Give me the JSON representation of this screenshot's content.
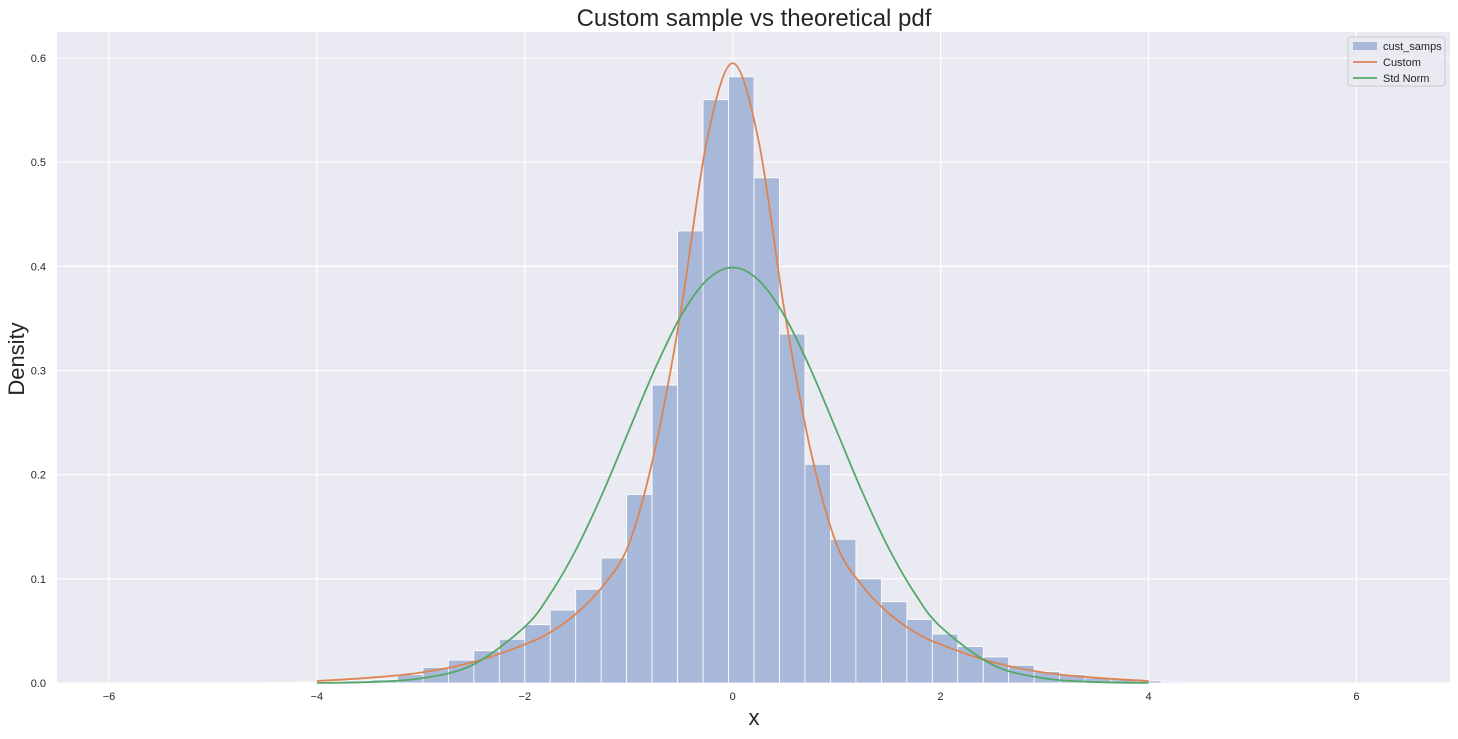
{
  "chart_data": {
    "type": "bar",
    "title": "Custom sample vs theoretical pdf",
    "xlabel": "x",
    "ylabel": "Density",
    "xlim": [
      -6.5,
      6.9
    ],
    "ylim": [
      0,
      0.625
    ],
    "grid": true,
    "legend_position": "top-right",
    "x_ticks": [
      -6,
      -4,
      -2,
      0,
      2,
      4,
      6
    ],
    "x_tick_labels": [
      "−6",
      "−4",
      "−2",
      "0",
      "2",
      "4",
      "6"
    ],
    "y_ticks": [
      0.0,
      0.1,
      0.2,
      0.3,
      0.4,
      0.5,
      0.6
    ],
    "y_tick_labels": [
      "0.0",
      "0.1",
      "0.2",
      "0.3",
      "0.4",
      "0.5",
      "0.6"
    ],
    "colors": {
      "background": "#eaeaf2",
      "grid": "#ffffff",
      "histogram": "#a8b8d8",
      "custom": "#dd8452",
      "std_norm": "#55a868"
    },
    "histogram": {
      "name": "cust_samps",
      "bin_width": 0.245,
      "bins": [
        {
          "x0": -4.45,
          "density": 0.0005
        },
        {
          "x0": -4.205,
          "density": 0.0008
        },
        {
          "x0": -3.96,
          "density": 0.0012
        },
        {
          "x0": -3.715,
          "density": 0.002
        },
        {
          "x0": -3.47,
          "density": 0.003
        },
        {
          "x0": -3.225,
          "density": 0.008
        },
        {
          "x0": -2.98,
          "density": 0.015
        },
        {
          "x0": -2.735,
          "density": 0.022
        },
        {
          "x0": -2.49,
          "density": 0.031
        },
        {
          "x0": -2.245,
          "density": 0.042
        },
        {
          "x0": -2.0,
          "density": 0.056
        },
        {
          "x0": -1.755,
          "density": 0.07
        },
        {
          "x0": -1.51,
          "density": 0.09
        },
        {
          "x0": -1.265,
          "density": 0.12
        },
        {
          "x0": -1.02,
          "density": 0.181
        },
        {
          "x0": -0.775,
          "density": 0.286
        },
        {
          "x0": -0.53,
          "density": 0.434
        },
        {
          "x0": -0.285,
          "density": 0.56
        },
        {
          "x0": -0.04,
          "density": 0.582
        },
        {
          "x0": 0.205,
          "density": 0.485
        },
        {
          "x0": 0.45,
          "density": 0.335
        },
        {
          "x0": 0.695,
          "density": 0.21
        },
        {
          "x0": 0.94,
          "density": 0.138
        },
        {
          "x0": 1.185,
          "density": 0.1
        },
        {
          "x0": 1.43,
          "density": 0.078
        },
        {
          "x0": 1.675,
          "density": 0.061
        },
        {
          "x0": 1.92,
          "density": 0.047
        },
        {
          "x0": 2.165,
          "density": 0.035
        },
        {
          "x0": 2.41,
          "density": 0.025
        },
        {
          "x0": 2.655,
          "density": 0.017
        },
        {
          "x0": 2.9,
          "density": 0.011
        },
        {
          "x0": 3.145,
          "density": 0.008
        },
        {
          "x0": 3.39,
          "density": 0.005
        },
        {
          "x0": 3.635,
          "density": 0.003
        },
        {
          "x0": 3.88,
          "density": 0.002
        },
        {
          "x0": 4.125,
          "density": 0.001
        }
      ]
    },
    "series": [
      {
        "name": "Custom",
        "x": [
          -4.0,
          -3.5,
          -3.0,
          -2.5,
          -2.0,
          -1.75,
          -1.5,
          -1.25,
          -1.0,
          -0.75,
          -0.5,
          -0.25,
          0.0,
          0.25,
          0.5,
          0.75,
          1.0,
          1.25,
          1.5,
          1.75,
          2.0,
          2.5,
          3.0,
          3.5,
          4.0
        ],
        "y": [
          0.002,
          0.005,
          0.01,
          0.02,
          0.037,
          0.049,
          0.067,
          0.093,
          0.133,
          0.223,
          0.356,
          0.52,
          0.595,
          0.52,
          0.356,
          0.223,
          0.133,
          0.093,
          0.067,
          0.049,
          0.037,
          0.02,
          0.01,
          0.005,
          0.002
        ]
      },
      {
        "name": "Std Norm",
        "x": [
          -4.0,
          -3.5,
          -3.0,
          -2.5,
          -2.0,
          -1.75,
          -1.5,
          -1.25,
          -1.0,
          -0.75,
          -0.5,
          -0.25,
          0.0,
          0.25,
          0.5,
          0.75,
          1.0,
          1.25,
          1.5,
          1.75,
          2.0,
          2.5,
          3.0,
          3.5,
          4.0
        ],
        "y": [
          0.0001,
          0.0009,
          0.0044,
          0.0175,
          0.054,
          0.0863,
          0.1295,
          0.1826,
          0.242,
          0.3011,
          0.3521,
          0.3867,
          0.3989,
          0.3867,
          0.3521,
          0.3011,
          0.242,
          0.1826,
          0.1295,
          0.0863,
          0.054,
          0.0175,
          0.0044,
          0.0009,
          0.0001
        ]
      }
    ],
    "legend": [
      "cust_samps",
      "Custom",
      "Std Norm"
    ]
  }
}
